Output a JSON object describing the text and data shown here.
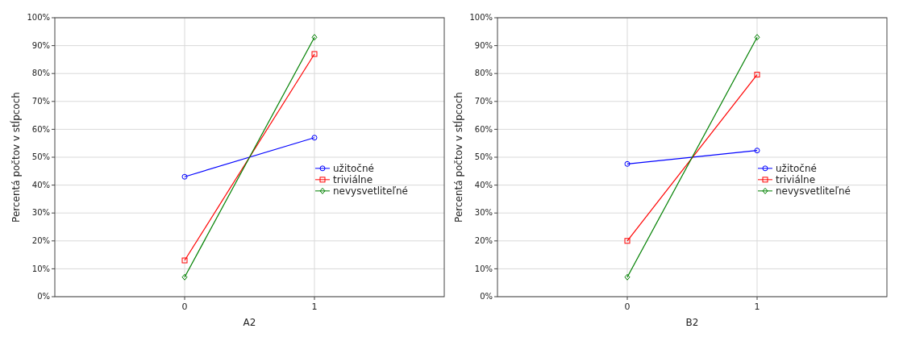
{
  "chart_data": [
    {
      "type": "line",
      "xlabel": "A2",
      "ylabel": "Percentá počtov v stĺpcoch",
      "categories": [
        "0",
        "1"
      ],
      "ylim": [
        0,
        100
      ],
      "yticks": [
        {
          "value": 0,
          "label": "0%"
        },
        {
          "value": 10,
          "label": "10%"
        },
        {
          "value": 20,
          "label": "20%"
        },
        {
          "value": 30,
          "label": "30%"
        },
        {
          "value": 40,
          "label": "40%"
        },
        {
          "value": 50,
          "label": "50%"
        },
        {
          "value": 60,
          "label": "60%"
        },
        {
          "value": 70,
          "label": "70%"
        },
        {
          "value": 80,
          "label": "80%"
        },
        {
          "value": 90,
          "label": "90%"
        },
        {
          "value": 100,
          "label": "100%"
        }
      ],
      "grid": true,
      "legend": "right",
      "series": [
        {
          "name": "užitočné",
          "color": "#0000ff",
          "marker": "circle",
          "values": [
            43,
            57
          ]
        },
        {
          "name": "triviálne",
          "color": "#ff0000",
          "marker": "square",
          "values": [
            13,
            87
          ]
        },
        {
          "name": "nevysvetliteľné",
          "color": "#008000",
          "marker": "diamond",
          "values": [
            7,
            93
          ]
        }
      ]
    },
    {
      "type": "line",
      "xlabel": "B2",
      "ylabel": "Percentá počtov v stĺpcoch",
      "categories": [
        "0",
        "1"
      ],
      "ylim": [
        0,
        100
      ],
      "yticks": [
        {
          "value": 0,
          "label": "0%"
        },
        {
          "value": 10,
          "label": "10%"
        },
        {
          "value": 20,
          "label": "20%"
        },
        {
          "value": 30,
          "label": "30%"
        },
        {
          "value": 40,
          "label": "40%"
        },
        {
          "value": 50,
          "label": "50%"
        },
        {
          "value": 60,
          "label": "60%"
        },
        {
          "value": 70,
          "label": "70%"
        },
        {
          "value": 80,
          "label": "80%"
        },
        {
          "value": 90,
          "label": "90%"
        },
        {
          "value": 100,
          "label": "100%"
        }
      ],
      "grid": true,
      "legend": "right",
      "series": [
        {
          "name": "užitočné",
          "color": "#0000ff",
          "marker": "circle",
          "values": [
            47.6,
            52.4
          ]
        },
        {
          "name": "triviálne",
          "color": "#ff0000",
          "marker": "square",
          "values": [
            20,
            79.6
          ]
        },
        {
          "name": "nevysvetliteľné",
          "color": "#008000",
          "marker": "diamond",
          "values": [
            7,
            93
          ]
        }
      ]
    }
  ]
}
